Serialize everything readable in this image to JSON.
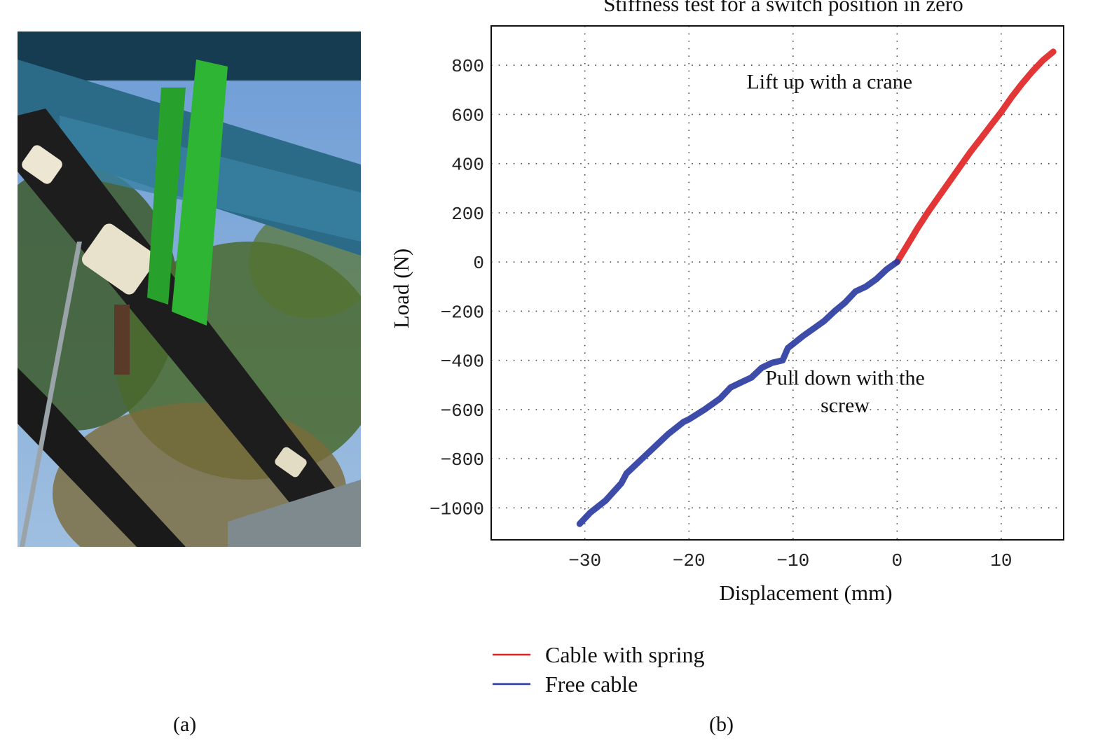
{
  "panels": {
    "a_label": "(a)",
    "b_label": "(b)"
  },
  "photo": {
    "description_icon": "cable-stiffness-test-photo"
  },
  "chart_data": {
    "type": "line",
    "title": "Stiffness test for a switch position in zero",
    "xlabel": "Displacement (mm)",
    "ylabel": "Load (N)",
    "xlim": [
      -39,
      16
    ],
    "ylim": [
      -1130,
      960
    ],
    "xticks": [
      -30,
      -20,
      -10,
      0,
      10
    ],
    "xtick_labels": [
      "−30",
      "−20",
      "−10",
      "0",
      "10"
    ],
    "yticks": [
      800,
      600,
      400,
      200,
      0,
      -200,
      -400,
      -600,
      -800,
      -1000
    ],
    "ytick_labels": [
      "800",
      "600",
      "400",
      "200",
      "0",
      "−200",
      "−400",
      "−600",
      "−800",
      "−1000"
    ],
    "grid": true,
    "legend_position": "bottom-left",
    "series": [
      {
        "name": "Cable with spring",
        "color": "#e02020",
        "x": [
          0,
          1,
          2,
          3,
          4,
          5,
          6,
          7,
          8,
          9,
          10,
          11,
          12,
          13,
          14,
          15
        ],
        "y": [
          0,
          70,
          140,
          205,
          265,
          325,
          385,
          445,
          500,
          555,
          610,
          670,
          725,
          775,
          820,
          855
        ]
      },
      {
        "name": "Free cable",
        "color": "#2838a0",
        "x": [
          -30.5,
          -29.5,
          -28,
          -26.5,
          -26,
          -25,
          -23.5,
          -22,
          -20.5,
          -20,
          -18.5,
          -17,
          -16,
          -15,
          -14,
          -13,
          -12,
          -11,
          -10.5,
          -9,
          -8,
          -7,
          -6,
          -5,
          -4,
          -3,
          -2,
          -1,
          0
        ],
        "y": [
          -1065,
          -1020,
          -970,
          -900,
          -860,
          -820,
          -760,
          -700,
          -650,
          -640,
          -600,
          -555,
          -510,
          -490,
          -470,
          -430,
          -410,
          -400,
          -350,
          -300,
          -270,
          -240,
          -200,
          -165,
          -120,
          -100,
          -70,
          -30,
          0
        ]
      }
    ],
    "annotations": [
      {
        "text": "Lift up with a crane",
        "x": -6.5,
        "y": 705
      },
      {
        "text": "Pull down with the",
        "x": -5,
        "y": -500
      },
      {
        "text": "screw",
        "x": -5,
        "y": -610
      }
    ]
  }
}
